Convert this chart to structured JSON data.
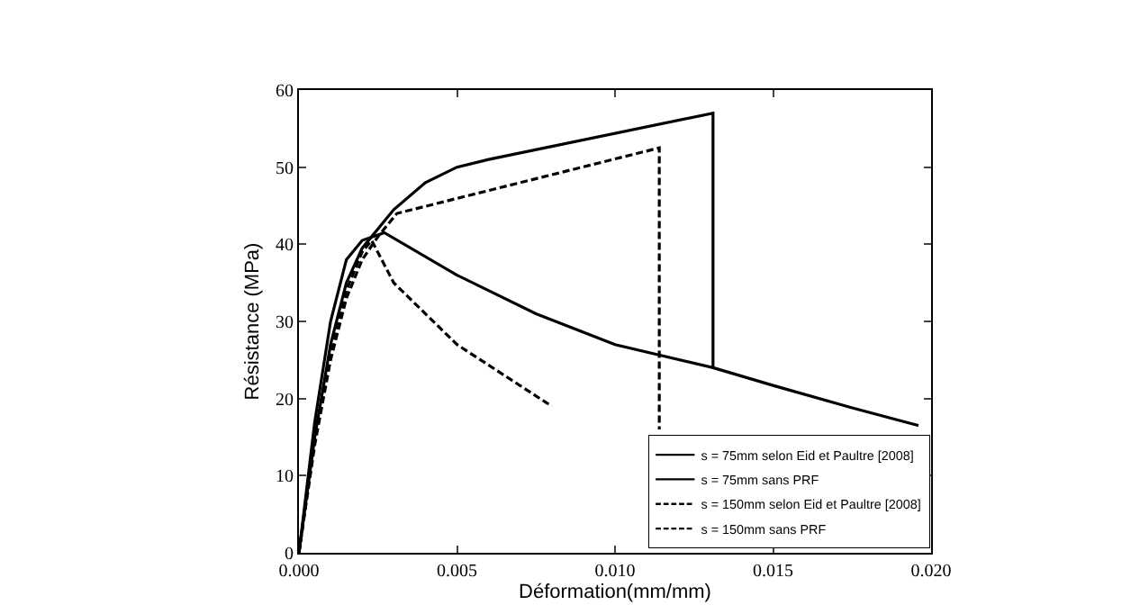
{
  "chart_data": {
    "type": "line",
    "xlabel": "Déformation(mm/mm)",
    "ylabel": "Résistance (MPa)",
    "xlim": [
      0,
      0.02
    ],
    "ylim": [
      0,
      60
    ],
    "xticks": [
      {
        "value": 0,
        "label": "0.000"
      },
      {
        "value": 0.005,
        "label": "0.005"
      },
      {
        "value": 0.01,
        "label": "0.010"
      },
      {
        "value": 0.015,
        "label": "0.015"
      },
      {
        "value": 0.02,
        "label": "0.020"
      }
    ],
    "yticks": [
      0,
      10,
      20,
      30,
      40,
      50,
      60
    ],
    "grid": false,
    "legend": "bottom right",
    "marker": "none",
    "series": [
      {
        "name": "s = 75mm selon Eid et Paultre [2008]",
        "color": "#000000",
        "line_style": "solid",
        "x": [
          0,
          0.0005,
          0.001,
          0.0015,
          0.002,
          0.0025,
          0.003,
          0.004,
          0.005,
          0.006,
          0.0131,
          0.0131
        ],
        "values": [
          0,
          15,
          27,
          35,
          39.5,
          42,
          44.5,
          48,
          50,
          51,
          57,
          24
        ]
      },
      {
        "name": "s = 75mm sans PRF",
        "color": "#000000",
        "line_style": "solid",
        "x": [
          0,
          0.0005,
          0.001,
          0.0015,
          0.002,
          0.0027,
          0.005,
          0.0075,
          0.01,
          0.0131,
          0.015,
          0.0175,
          0.0196
        ],
        "values": [
          0,
          17,
          30,
          38,
          40.5,
          41.5,
          36,
          31,
          27,
          24,
          21.7,
          18.8,
          16.5
        ]
      },
      {
        "name": "s = 150mm selon Eid et Paultre [2008]",
        "color": "#000000",
        "line_style": "dashed",
        "x": [
          0,
          0.0005,
          0.001,
          0.0015,
          0.002,
          0.0025,
          0.0031,
          0.0114,
          0.0114
        ],
        "values": [
          0,
          14,
          25,
          33,
          38,
          41,
          44,
          52.5,
          16
        ]
      },
      {
        "name": "s = 150mm sans PRF",
        "color": "#000000",
        "line_style": "dashed",
        "x": [
          0,
          0.0005,
          0.001,
          0.0015,
          0.002,
          0.0023,
          0.003,
          0.005,
          0.008
        ],
        "values": [
          0,
          15,
          26,
          34,
          39,
          40.5,
          35,
          27,
          19
        ]
      }
    ]
  }
}
